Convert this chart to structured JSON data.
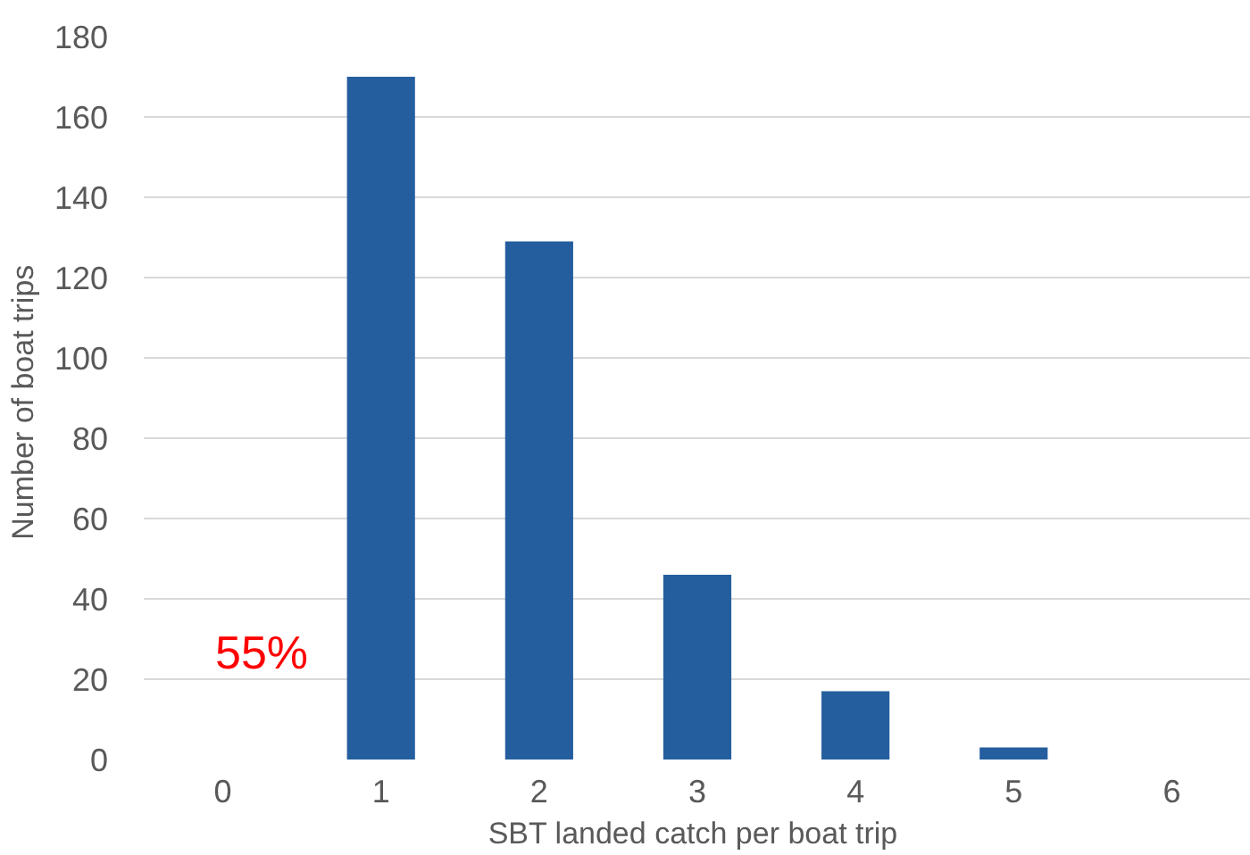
{
  "chart_data": {
    "type": "bar",
    "xlabel": "SBT landed  catch per boat trip",
    "ylabel": "Number  of boat trips",
    "categories": [
      "0",
      "1",
      "2",
      "3",
      "4",
      "5",
      "6"
    ],
    "values": [
      0,
      170,
      129,
      46,
      17,
      3,
      0
    ],
    "color": "#255e9f",
    "ylim": [
      0,
      180
    ],
    "yticks": [
      0,
      20,
      40,
      60,
      80,
      100,
      120,
      140,
      160,
      180
    ],
    "grid": "y",
    "annotations": [
      "55%"
    ]
  }
}
